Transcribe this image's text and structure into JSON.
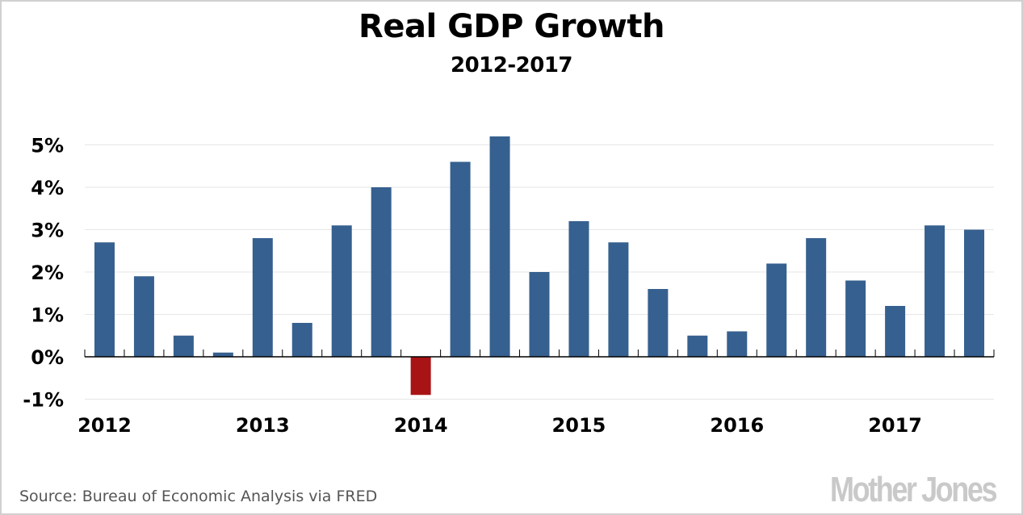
{
  "chart_data": {
    "type": "bar",
    "title": "Real GDP Growth",
    "subtitle": "2012-2017",
    "xlabel": "",
    "ylabel": "",
    "ylim": [
      -1,
      5
    ],
    "grid": true,
    "yticks": [
      5,
      4,
      3,
      2,
      1,
      0,
      -1
    ],
    "ytick_labels": [
      "5%",
      "4%",
      "3%",
      "2%",
      "1%",
      "0%",
      "-1%"
    ],
    "x_year_labels": [
      "2012",
      "2013",
      "2014",
      "2015",
      "2016",
      "2017"
    ],
    "categories": [
      "2012 Q1",
      "2012 Q2",
      "2012 Q3",
      "2012 Q4",
      "2013 Q1",
      "2013 Q2",
      "2013 Q3",
      "2013 Q4",
      "2014 Q1",
      "2014 Q2",
      "2014 Q3",
      "2014 Q4",
      "2015 Q1",
      "2015 Q2",
      "2015 Q3",
      "2015 Q4",
      "2016 Q1",
      "2016 Q2",
      "2016 Q3",
      "2016 Q4",
      "2017 Q1",
      "2017 Q2",
      "2017 Q3"
    ],
    "values": [
      2.7,
      1.9,
      0.5,
      0.1,
      2.8,
      0.8,
      3.1,
      4.0,
      -0.9,
      4.6,
      5.2,
      2.0,
      3.2,
      2.7,
      1.6,
      0.5,
      0.6,
      2.2,
      2.8,
      1.8,
      1.2,
      3.1,
      3.0
    ],
    "colors": {
      "positive": "#36608f",
      "negative": "#a81416",
      "grid": "#e6e6e6",
      "axis": "#000000"
    }
  },
  "footer": {
    "source": "Source: Bureau of Economic Analysis via FRED",
    "logo": "Mother Jones"
  }
}
